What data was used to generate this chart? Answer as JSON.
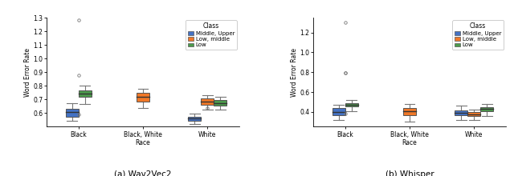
{
  "title_left": "(a) Wav2Vec2",
  "title_right": "(b) Whisper",
  "ylabel_left": "Word Error Rate",
  "ylabel_right": "Word Error Rate",
  "xlabel_categories": [
    "Black",
    "Black, White\nRace",
    "White"
  ],
  "legend_title": "Class",
  "legend_labels": [
    "Middle, Upper",
    "Low, middle",
    "Low"
  ],
  "colors": [
    "#4472C4",
    "#F07828",
    "#4C9A4C"
  ],
  "wav2vec2": {
    "Black": {
      "Middle_Upper": {
        "q1": 0.575,
        "median": 0.605,
        "q3": 0.63,
        "whisker_low": 0.545,
        "whisker_high": 0.67,
        "fliers": [
          0.875,
          1.28
        ]
      },
      "Low_middle": {
        "q1": null,
        "median": null,
        "q3": null,
        "whisker_low": null,
        "whisker_high": null,
        "fliers": [
          0.59
        ]
      },
      "Low": {
        "q1": 0.72,
        "median": 0.745,
        "q3": 0.765,
        "whisker_low": 0.665,
        "whisker_high": 0.8,
        "fliers": []
      }
    },
    "Black_White": {
      "Middle_Upper": {
        "q1": null,
        "median": null,
        "q3": null,
        "whisker_low": null,
        "whisker_high": null,
        "fliers": []
      },
      "Low_middle": {
        "q1": 0.685,
        "median": 0.72,
        "q3": 0.75,
        "whisker_low": 0.635,
        "whisker_high": 0.78,
        "fliers": []
      },
      "Low": {
        "q1": null,
        "median": null,
        "q3": null,
        "whisker_low": null,
        "whisker_high": null,
        "fliers": []
      }
    },
    "White": {
      "Middle_Upper": {
        "q1": 0.545,
        "median": 0.56,
        "q3": 0.575,
        "whisker_low": 0.52,
        "whisker_high": 0.595,
        "fliers": [
          0.635
        ]
      },
      "Low_middle": {
        "q1": 0.66,
        "median": 0.685,
        "q3": 0.705,
        "whisker_low": 0.625,
        "whisker_high": 0.73,
        "fliers": []
      },
      "Low": {
        "q1": 0.655,
        "median": 0.675,
        "q3": 0.695,
        "whisker_low": 0.625,
        "whisker_high": 0.72,
        "fliers": []
      }
    }
  },
  "whisper": {
    "Black": {
      "Middle_Upper": {
        "q1": 0.365,
        "median": 0.4,
        "q3": 0.435,
        "whisker_low": 0.315,
        "whisker_high": 0.47,
        "fliers": [
          0.795,
          1.3
        ]
      },
      "Low_middle": {
        "q1": null,
        "median": null,
        "q3": null,
        "whisker_low": null,
        "whisker_high": null,
        "fliers": [
          0.795
        ]
      },
      "Low": {
        "q1": 0.455,
        "median": 0.47,
        "q3": 0.485,
        "whisker_low": 0.405,
        "whisker_high": 0.52,
        "fliers": [
          0.385
        ]
      }
    },
    "Black_White": {
      "Middle_Upper": {
        "q1": null,
        "median": null,
        "q3": null,
        "whisker_low": null,
        "whisker_high": null,
        "fliers": []
      },
      "Low_middle": {
        "q1": 0.37,
        "median": 0.405,
        "q3": 0.435,
        "whisker_low": 0.3,
        "whisker_high": 0.475,
        "fliers": []
      },
      "Low": {
        "q1": null,
        "median": null,
        "q3": null,
        "whisker_low": null,
        "whisker_high": null,
        "fliers": []
      }
    },
    "White": {
      "Middle_Upper": {
        "q1": 0.365,
        "median": 0.39,
        "q3": 0.415,
        "whisker_low": 0.315,
        "whisker_high": 0.465,
        "fliers": []
      },
      "Low_middle": {
        "q1": 0.355,
        "median": 0.375,
        "q3": 0.395,
        "whisker_low": 0.315,
        "whisker_high": 0.42,
        "fliers": []
      },
      "Low": {
        "q1": 0.41,
        "median": 0.43,
        "q3": 0.45,
        "whisker_low": 0.36,
        "whisker_high": 0.475,
        "fliers": []
      }
    }
  },
  "ylim_left": [
    0.5,
    1.3
  ],
  "ylim_right": [
    0.25,
    1.35
  ],
  "yticks_left": [
    0.6,
    0.7,
    0.8,
    0.9,
    1.0,
    1.1,
    1.2,
    1.3
  ],
  "yticks_right": [
    0.4,
    0.6,
    0.8,
    1.0,
    1.2
  ]
}
